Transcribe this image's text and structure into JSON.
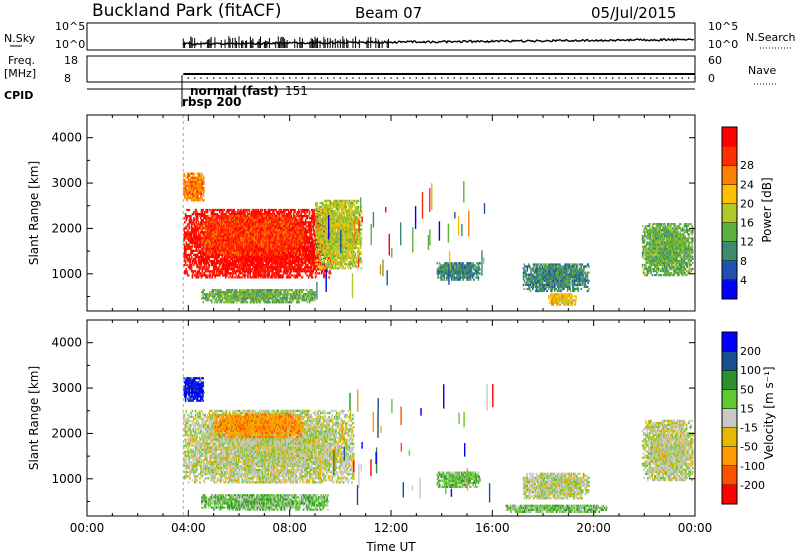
{
  "header": {
    "station": "Buckland Park (fitACF)",
    "beam": "Beam 07",
    "date": "05/Jul/2015"
  },
  "status_panels": {
    "nsky_label": "N.Sky",
    "nsky_ticks": [
      "10^5",
      "10^0"
    ],
    "nsearch_label": "N.Search",
    "nsearch_ticks": [
      "10^5",
      "10^0"
    ],
    "freq_label": "Freq.",
    "freq_unit": "[MHz]",
    "freq_ticks": [
      "18",
      "8"
    ],
    "nave_label": "Nave",
    "nave_ticks": [
      "60",
      "0"
    ],
    "cpid_label": "CPID",
    "cpid_mode": "normal (fast)",
    "cpid_mode_num": "151",
    "cpid_rbsp": "rbsp 200"
  },
  "colors": {
    "power": [
      "#0000ff",
      "#2050b0",
      "#3d8a6c",
      "#5fb040",
      "#b0c828",
      "#ffbe00",
      "#ff7f00",
      "#ff3000",
      "#ff0000"
    ],
    "velocity": [
      "#ff0000",
      "#ff5000",
      "#ff9a00",
      "#e8b800",
      "#c8c8c8",
      "#60c830",
      "#2e8f2e",
      "#1a5090",
      "#0000ff"
    ]
  },
  "chart_data": [
    {
      "type": "heatmap",
      "title": "",
      "xlabel": "",
      "ylabel": "Slant Range [km]",
      "xlim": [
        0,
        24
      ],
      "ylim": [
        180,
        4500
      ],
      "yticks": [
        "1000",
        "2000",
        "3000",
        "4000"
      ],
      "colorbar_label": "Power [dB]",
      "colorbar_ticks": [
        "4",
        "8",
        "12",
        "16",
        "20",
        "24",
        "28"
      ],
      "regions": [
        {
          "t0": 3.8,
          "t1": 9.6,
          "r0": 900,
          "r1": 2400,
          "level": 8
        },
        {
          "t0": 4.5,
          "t1": 8.5,
          "r0": 1400,
          "r1": 2300,
          "level": 7
        },
        {
          "t0": 3.8,
          "t1": 4.6,
          "r0": 2600,
          "r1": 3200,
          "level": 6
        },
        {
          "t0": 9.0,
          "t1": 10.8,
          "r0": 1100,
          "r1": 2600,
          "level": 4
        },
        {
          "t0": 4.5,
          "t1": 9.0,
          "r0": 350,
          "r1": 650,
          "level": 3
        },
        {
          "t0": 13.8,
          "t1": 15.5,
          "r0": 850,
          "r1": 1250,
          "level": 2
        },
        {
          "t0": 17.2,
          "t1": 19.8,
          "r0": 600,
          "r1": 1200,
          "level": 2
        },
        {
          "t0": 18.2,
          "t1": 19.3,
          "r0": 300,
          "r1": 550,
          "level": 5
        },
        {
          "t0": 21.9,
          "t1": 23.9,
          "r0": 950,
          "r1": 2100,
          "level": 3
        }
      ]
    },
    {
      "type": "heatmap",
      "title": "",
      "xlabel": "Time UT",
      "ylabel": "Slant Range [km]",
      "xlim": [
        0,
        24
      ],
      "ylim": [
        180,
        4500
      ],
      "xticks": [
        "00:00",
        "04:00",
        "08:00",
        "12:00",
        "16:00",
        "20:00",
        "00:00"
      ],
      "yticks": [
        "1000",
        "2000",
        "3000",
        "4000"
      ],
      "colorbar_label": "Velocity [m s⁻¹]",
      "colorbar_ticks": [
        "-200",
        "-100",
        "-50",
        "-15",
        "15",
        "50",
        "100",
        "200"
      ],
      "regions": [
        {
          "t0": 3.8,
          "t1": 10.5,
          "r0": 900,
          "r1": 2500,
          "level": 4
        },
        {
          "t0": 5.0,
          "t1": 8.5,
          "r0": 1900,
          "r1": 2400,
          "level": 2
        },
        {
          "t0": 3.8,
          "t1": 4.6,
          "r0": 2700,
          "r1": 3200,
          "level": 8
        },
        {
          "t0": 4.5,
          "t1": 9.5,
          "r0": 300,
          "r1": 650,
          "level": 5
        },
        {
          "t0": 13.8,
          "t1": 15.5,
          "r0": 800,
          "r1": 1150,
          "level": 5
        },
        {
          "t0": 17.2,
          "t1": 19.8,
          "r0": 550,
          "r1": 1100,
          "level": 4
        },
        {
          "t0": 16.5,
          "t1": 20.5,
          "r0": 250,
          "r1": 420,
          "level": 5
        },
        {
          "t0": 21.9,
          "t1": 23.9,
          "r0": 950,
          "r1": 2300,
          "level": 4
        }
      ]
    }
  ]
}
